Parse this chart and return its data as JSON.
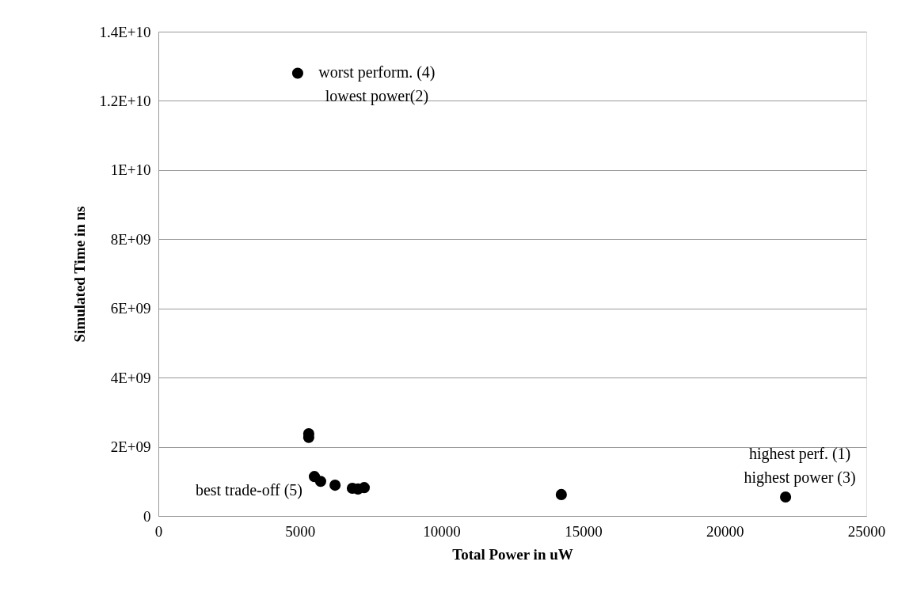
{
  "chart_data": {
    "type": "scatter",
    "xlabel": "Total Power in uW",
    "ylabel": "Simulated Time in ns",
    "x": [
      4920,
      5310,
      5310,
      5510,
      5730,
      6240,
      6850,
      7050,
      7270,
      14230,
      22150
    ],
    "series": [
      {
        "color": "#000000",
        "values": [
          12800000000.0,
          2380000000.0,
          2270000000.0,
          1140000000.0,
          1000000000.0,
          890000000.0,
          800000000.0,
          780000000.0,
          820000000.0,
          620000000.0,
          550000000.0
        ]
      }
    ],
    "xlim": [
      0,
      25000
    ],
    "xticks": [
      0,
      5000,
      10000,
      15000,
      20000,
      25000
    ],
    "ylim": [
      0,
      14000000000.0
    ],
    "yticks": [
      0,
      {
        "value": 2000000000.0,
        "label": "2E+09"
      },
      {
        "value": 4000000000.0,
        "label": "4E+09"
      },
      {
        "value": 6000000000.0,
        "label": "6E+09"
      },
      {
        "value": 8000000000.0,
        "label": "8E+09"
      },
      {
        "value": 10000000000.0,
        "label": "1E+10"
      },
      {
        "value": 12000000000.0,
        "label": "1.2E+10"
      },
      {
        "value": 14000000000.0,
        "label": "1.4E+10"
      }
    ],
    "grid": "y",
    "marker": "circle",
    "annotations": [
      {
        "text": "worst perform. (4)\nlowest power(2)",
        "x": 4920,
        "y": 12800000000.0
      },
      {
        "text": "highest perf. (1)\nhighest power (3)",
        "x": 22150,
        "y": 550000000.0
      },
      {
        "text": "best trade-off (5)",
        "x": 5510,
        "y": 1140000000.0
      }
    ]
  }
}
